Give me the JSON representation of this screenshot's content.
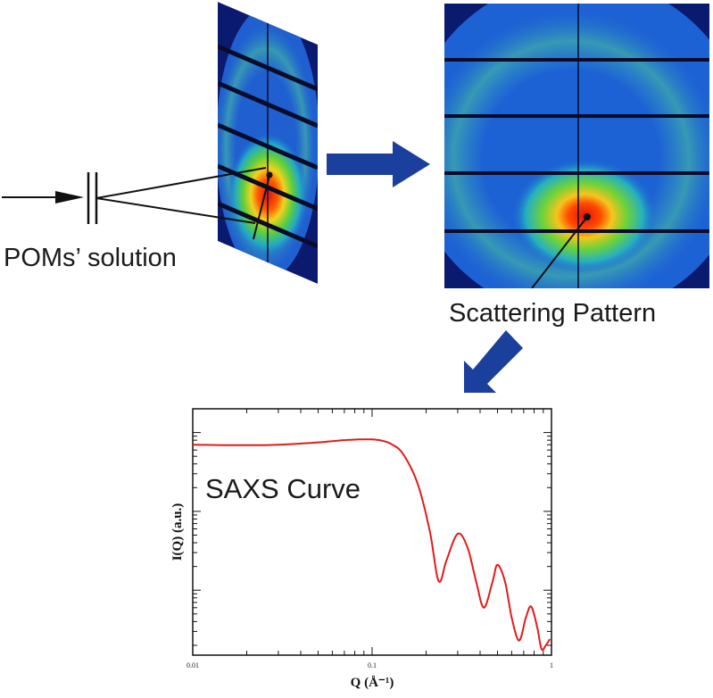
{
  "labels": {
    "solution": "POMs’ solution",
    "pattern": "Scattering Pattern",
    "curve": "SAXS Curve"
  },
  "colors": {
    "arrow": "#1b3f9c",
    "curve": "#e31a1c",
    "detector_bg": "#0a1a6e",
    "detector_lines": "#0b0b2a"
  },
  "chart_data": {
    "type": "line",
    "title": "",
    "xlabel": "Q (Å⁻¹)",
    "ylabel": "I(Q) (a.u.)",
    "xscale": "log",
    "yscale": "log",
    "xlim": [
      0.01,
      1
    ],
    "xtick_labels": [
      "0.01",
      "0.1",
      "1"
    ],
    "grid": false,
    "series": [
      {
        "x": [
          0.01,
          0.02,
          0.03,
          0.05,
          0.07,
          0.09,
          0.11,
          0.13,
          0.15,
          0.18,
          0.21,
          0.235,
          0.26,
          0.3,
          0.34,
          0.38,
          0.42,
          0.47,
          0.5,
          0.55,
          0.6,
          0.66,
          0.72,
          0.77,
          0.83,
          0.88,
          0.93,
          0.98
        ],
        "y": [
          70,
          69,
          70,
          75,
          80,
          82,
          80,
          70,
          52,
          22,
          5.5,
          1.3,
          2.4,
          5.2,
          3.5,
          1.3,
          0.6,
          1.3,
          2.1,
          1.3,
          0.45,
          0.23,
          0.45,
          0.62,
          0.35,
          0.18,
          0.2,
          0.24
        ]
      }
    ]
  }
}
